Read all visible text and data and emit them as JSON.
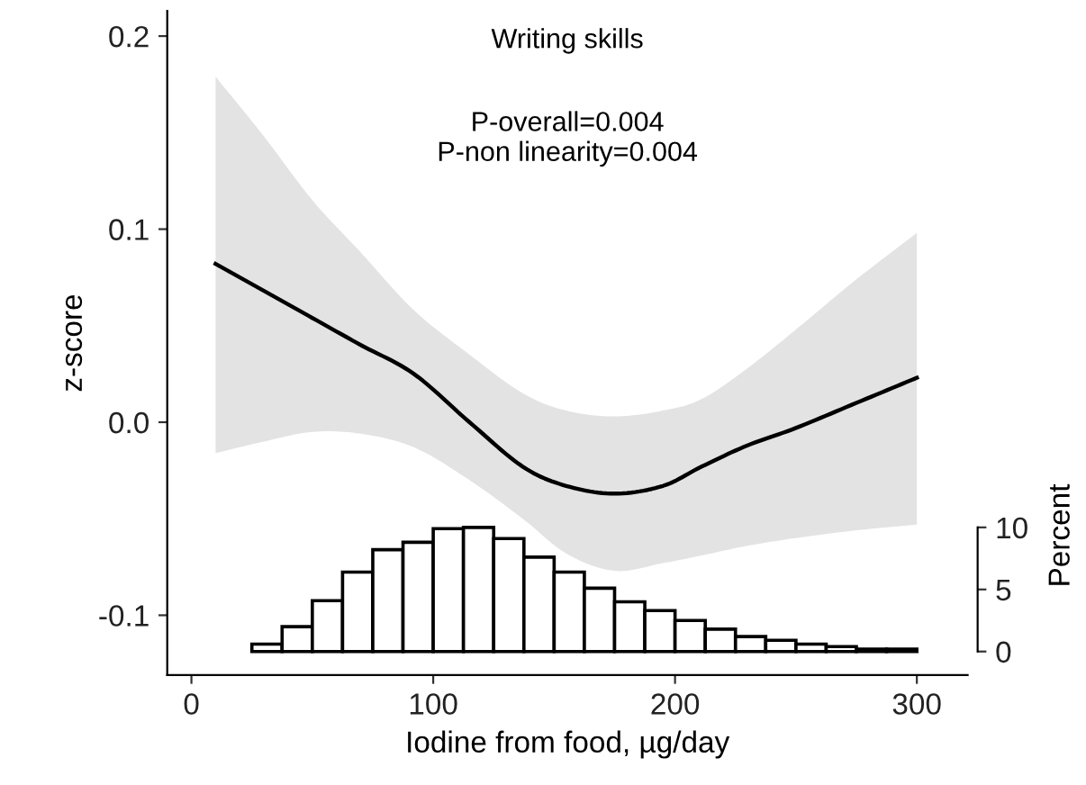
{
  "chart_data": {
    "type": "line",
    "xlabel": "Iodine from food, µg/day",
    "ylabel": "z-score",
    "y2label": "Percent",
    "annotations": [
      "Writing skills",
      "P-overall=0.004",
      "P-non linearity=0.004"
    ],
    "xlim": [
      -10,
      321
    ],
    "xticks": [
      0,
      100,
      200,
      300
    ],
    "ylim": [
      -0.131,
      0.213
    ],
    "yticks": [
      {
        "value": -0.1,
        "label": "-0.1"
      },
      {
        "value": 0,
        "label": "0.0"
      },
      {
        "value": 0.1,
        "label": "0.1"
      },
      {
        "value": 0.2,
        "label": "0.2"
      }
    ],
    "y2lim": [
      -1.9,
      51.6
    ],
    "y2ticks": [
      0,
      5,
      10
    ],
    "grid": false,
    "legend": false,
    "series": [
      {
        "color": "#000000",
        "x": [
          10,
          30,
          50,
          70,
          92,
          115,
          137,
          155,
          175,
          195,
          211,
          230,
          250,
          275,
          300
        ],
        "values": [
          0.082,
          0.068,
          0.054,
          0.04,
          0.025,
          0.0,
          -0.023,
          -0.033,
          -0.037,
          -0.033,
          -0.023,
          -0.012,
          -0.003,
          0.01,
          0.023
        ],
        "upper": [
          0.179,
          0.148,
          0.115,
          0.088,
          0.058,
          0.035,
          0.015,
          0.006,
          0.003,
          0.006,
          0.012,
          0.028,
          0.048,
          0.074,
          0.098
        ],
        "lower": [
          -0.016,
          -0.01,
          -0.005,
          -0.006,
          -0.013,
          -0.03,
          -0.05,
          -0.068,
          -0.077,
          -0.073,
          -0.069,
          -0.064,
          -0.06,
          -0.056,
          -0.053
        ]
      },
      {
        "type": "histogram",
        "axis": "y2",
        "color": "#ffffff",
        "bins": [
          25,
          37.5,
          50,
          62.5,
          75,
          87.5,
          100,
          112.5,
          125,
          137.5,
          150,
          162.5,
          175,
          187.5,
          200,
          212.5,
          225,
          237.5,
          250,
          262.5,
          275,
          287.5,
          300
        ],
        "values": [
          0.6,
          2.0,
          4.1,
          6.4,
          8.2,
          8.8,
          9.9,
          10.0,
          9.1,
          7.6,
          6.4,
          5.1,
          4.0,
          3.3,
          2.5,
          1.8,
          1.2,
          0.9,
          0.6,
          0.4,
          0.2,
          0.2
        ]
      }
    ]
  }
}
